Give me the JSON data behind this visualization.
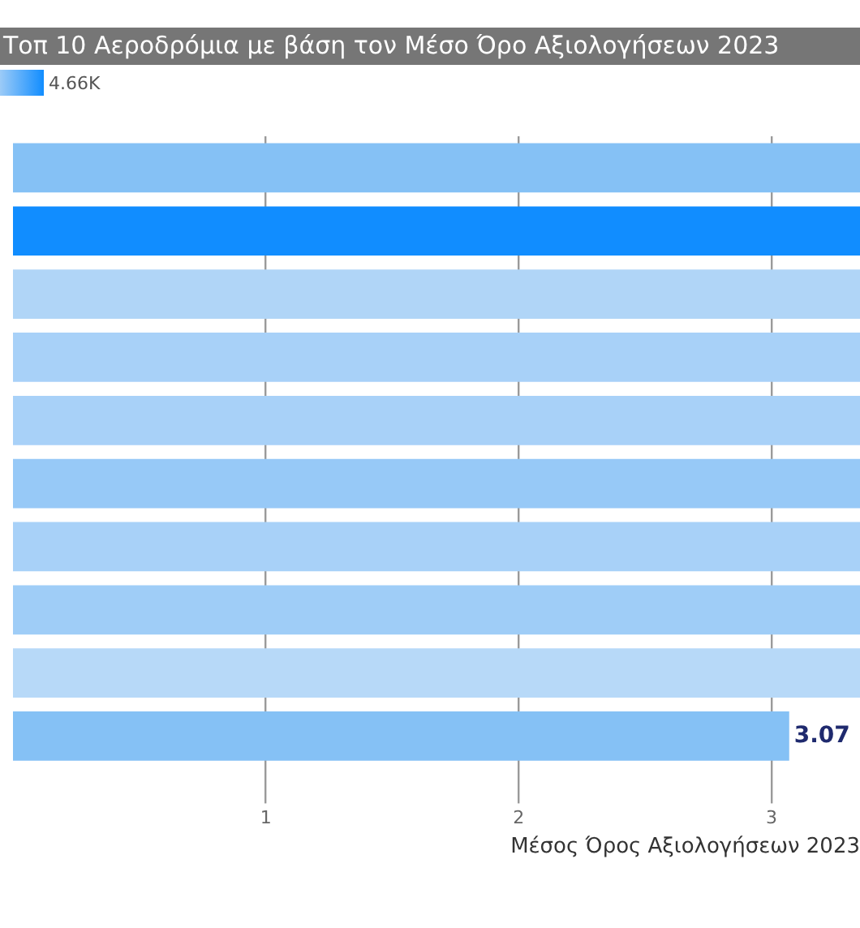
{
  "chart_data": {
    "type": "bar",
    "orientation": "horizontal",
    "title": "Τοπ 10 Αεροδρόμια με βάση τον Μέσο Όρο Αξιολογήσεων 2023",
    "categories": [
      null,
      null,
      null,
      null,
      null,
      null,
      null,
      null,
      null,
      null
    ],
    "values": [
      3.35,
      3.35,
      3.35,
      3.35,
      3.35,
      3.35,
      3.35,
      3.35,
      3.35,
      3.07
    ],
    "colors": [
      "#85c1f5",
      "#118dff",
      "#b0d5f7",
      "#a8d1f8",
      "#a8d1f8",
      "#97c9f7",
      "#a8d1f8",
      "#9fcdf7",
      "#b7d9f8",
      "#85c1f5"
    ],
    "value_labels": [
      null,
      null,
      null,
      null,
      null,
      null,
      null,
      null,
      null,
      "3.07"
    ],
    "xlabel": "Μέσος Όρος Αξιολογήσεων 2023",
    "xlim": [
      0,
      3.35
    ],
    "xticks": [
      1,
      2,
      3
    ],
    "grid": "x",
    "tick_labels": "x",
    "annotations": [
      "4.66K"
    ]
  }
}
